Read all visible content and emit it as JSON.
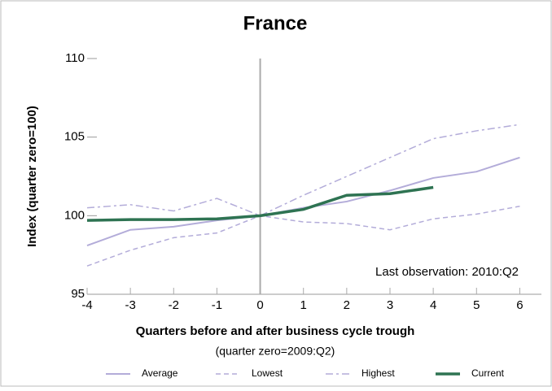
{
  "chart_data": {
    "type": "line",
    "title": "France",
    "xlabel": "Quarters before and after business cycle trough",
    "subxlabel": "(quarter zero=2009:Q2)",
    "ylabel": "Index (quarter zero=100)",
    "annotation": "Last observation: 2010:Q2",
    "x": [
      -4,
      -3,
      -2,
      -1,
      0,
      1,
      2,
      3,
      4,
      5,
      6
    ],
    "xlim": [
      -4,
      6.5
    ],
    "xticks": [
      -4,
      -3,
      -2,
      -1,
      0,
      1,
      2,
      3,
      4,
      5,
      6
    ],
    "ylim": [
      95,
      110
    ],
    "yticks": [
      95,
      100,
      105,
      110
    ],
    "series": [
      {
        "name": "Average",
        "color": "#b3acd9",
        "linestyle": "solid",
        "values": [
          98.1,
          99.1,
          99.3,
          99.7,
          100,
          100.5,
          100.9,
          101.6,
          102.4,
          102.8,
          103.7
        ]
      },
      {
        "name": "Lowest",
        "color": "#b3acd9",
        "linestyle": "dashed",
        "values": [
          96.8,
          97.8,
          98.6,
          98.9,
          100,
          99.6,
          99.5,
          99.1,
          99.8,
          100.1,
          100.6
        ]
      },
      {
        "name": "Highest",
        "color": "#b3acd9",
        "linestyle": "dashdot",
        "values": [
          100.5,
          100.7,
          100.3,
          101.1,
          100,
          101.3,
          102.5,
          103.7,
          104.9,
          105.4,
          105.8
        ]
      },
      {
        "name": "Current",
        "color": "#2e7352",
        "linestyle": "thick",
        "values": [
          99.7,
          99.75,
          99.75,
          99.8,
          100,
          100.4,
          101.3,
          101.4,
          101.8,
          null,
          null
        ]
      }
    ]
  }
}
